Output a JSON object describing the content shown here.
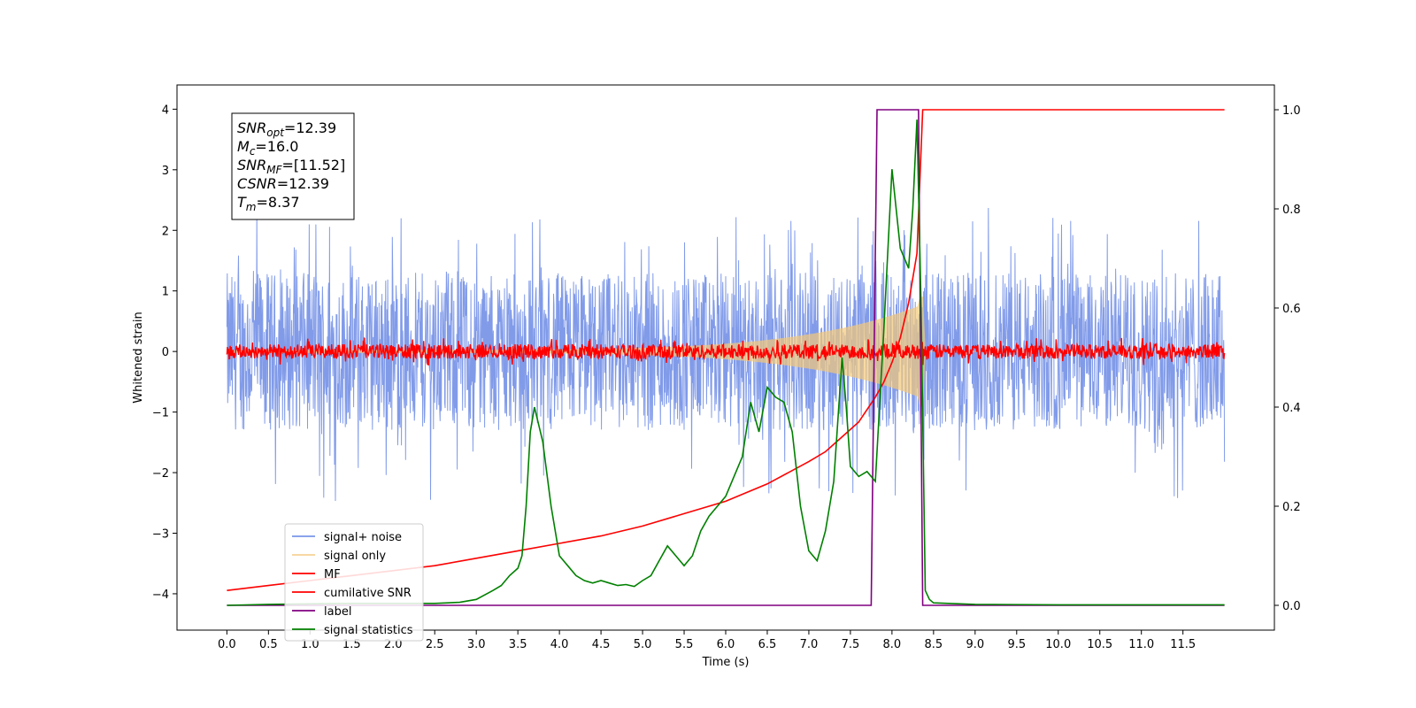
{
  "chart_data": {
    "type": "line",
    "xlabel": "Time (s)",
    "ylabel": "Whitened strain",
    "xlim": [
      -0.6,
      12.6
    ],
    "ylim": [
      -4.6,
      4.4
    ],
    "y2lim": [
      -0.05,
      1.05
    ],
    "x_ticks": [
      "0.0",
      "0.5",
      "1.0",
      "1.5",
      "2.0",
      "2.5",
      "3.0",
      "3.5",
      "4.0",
      "4.5",
      "5.0",
      "5.5",
      "6.0",
      "6.5",
      "7.0",
      "7.5",
      "8.0",
      "8.5",
      "9.0",
      "9.5",
      "10.0",
      "10.5",
      "11.0",
      "11.5"
    ],
    "y_ticks": [
      "4",
      "3",
      "2",
      "1",
      "0",
      "−1",
      "−2",
      "−3",
      "−4"
    ],
    "y2_ticks": [
      "1.0",
      "0.8",
      "0.6",
      "0.4",
      "0.2",
      "0.0"
    ],
    "annotation": [
      {
        "sym": "SNR",
        "sub": "opt",
        "value": "=12.39"
      },
      {
        "sym": "M",
        "sub": "c",
        "value": "=16.0"
      },
      {
        "sym": "SNR",
        "sub": "MF",
        "value": "=[11.52]"
      },
      {
        "sym": "CSNR",
        "sub": "",
        "value": "=12.39"
      },
      {
        "sym": "T",
        "sub": "m",
        "value": "=8.37"
      }
    ],
    "legend_position": "lower-left",
    "series": [
      {
        "name": "signal+ noise",
        "color": "#7a96e8",
        "axis": "left",
        "kind": "noise",
        "amplitude": 1.3,
        "x_range": [
          0,
          12
        ]
      },
      {
        "name": "signal only",
        "color": "#f5c97a",
        "axis": "left",
        "kind": "chirp",
        "peak_time": 8.37,
        "x_range": [
          0,
          12
        ]
      },
      {
        "name": "MF",
        "color": "#ff0000",
        "axis": "left",
        "kind": "noise",
        "amplitude": 0.12,
        "x_range": [
          0,
          12
        ]
      },
      {
        "name": "cumilative SNR",
        "color": "#ff0000",
        "axis": "right",
        "x": [
          0,
          0.5,
          1,
          1.5,
          2,
          2.5,
          3,
          3.5,
          4,
          4.5,
          5,
          5.5,
          6,
          6.5,
          7,
          7.2,
          7.4,
          7.6,
          7.8,
          7.9,
          8.0,
          8.1,
          8.2,
          8.3,
          8.37,
          8.4,
          9,
          10,
          11,
          12
        ],
        "y": [
          0.03,
          0.04,
          0.05,
          0.06,
          0.07,
          0.08,
          0.095,
          0.11,
          0.125,
          0.14,
          0.16,
          0.185,
          0.21,
          0.245,
          0.29,
          0.31,
          0.34,
          0.37,
          0.42,
          0.45,
          0.49,
          0.54,
          0.61,
          0.71,
          1.0,
          1.0,
          1.0,
          1.0,
          1.0,
          1.0
        ]
      },
      {
        "name": "label",
        "color": "#800080",
        "axis": "right",
        "x": [
          0,
          7.75,
          7.82,
          8.32,
          8.37,
          12
        ],
        "y": [
          0,
          0,
          1.0,
          1.0,
          0,
          0
        ]
      },
      {
        "name": "signal statistics",
        "color": "#008000",
        "axis": "right",
        "x": [
          0,
          0.5,
          1,
          1.5,
          2,
          2.5,
          2.8,
          3.0,
          3.2,
          3.3,
          3.4,
          3.5,
          3.55,
          3.6,
          3.65,
          3.7,
          3.8,
          3.9,
          4.0,
          4.1,
          4.2,
          4.3,
          4.4,
          4.5,
          4.6,
          4.7,
          4.8,
          4.9,
          5.0,
          5.1,
          5.2,
          5.3,
          5.4,
          5.5,
          5.6,
          5.7,
          5.8,
          5.9,
          6.0,
          6.1,
          6.2,
          6.3,
          6.4,
          6.5,
          6.6,
          6.7,
          6.8,
          6.9,
          7.0,
          7.1,
          7.2,
          7.3,
          7.4,
          7.45,
          7.5,
          7.6,
          7.7,
          7.8,
          7.9,
          8.0,
          8.1,
          8.2,
          8.25,
          8.3,
          8.35,
          8.4,
          8.45,
          8.5,
          9.0,
          10,
          11,
          12
        ],
        "y": [
          0,
          0.002,
          0.003,
          0.004,
          0.004,
          0.004,
          0.006,
          0.012,
          0.03,
          0.04,
          0.06,
          0.075,
          0.1,
          0.2,
          0.35,
          0.4,
          0.33,
          0.2,
          0.1,
          0.08,
          0.06,
          0.05,
          0.045,
          0.05,
          0.045,
          0.04,
          0.042,
          0.038,
          0.05,
          0.06,
          0.09,
          0.12,
          0.1,
          0.08,
          0.1,
          0.15,
          0.18,
          0.2,
          0.22,
          0.26,
          0.3,
          0.41,
          0.35,
          0.44,
          0.42,
          0.41,
          0.35,
          0.2,
          0.11,
          0.09,
          0.15,
          0.25,
          0.5,
          0.4,
          0.28,
          0.26,
          0.27,
          0.25,
          0.55,
          0.88,
          0.72,
          0.68,
          0.8,
          0.98,
          0.6,
          0.03,
          0.012,
          0.005,
          0.002,
          0.001,
          0.001,
          0.001
        ]
      }
    ]
  }
}
